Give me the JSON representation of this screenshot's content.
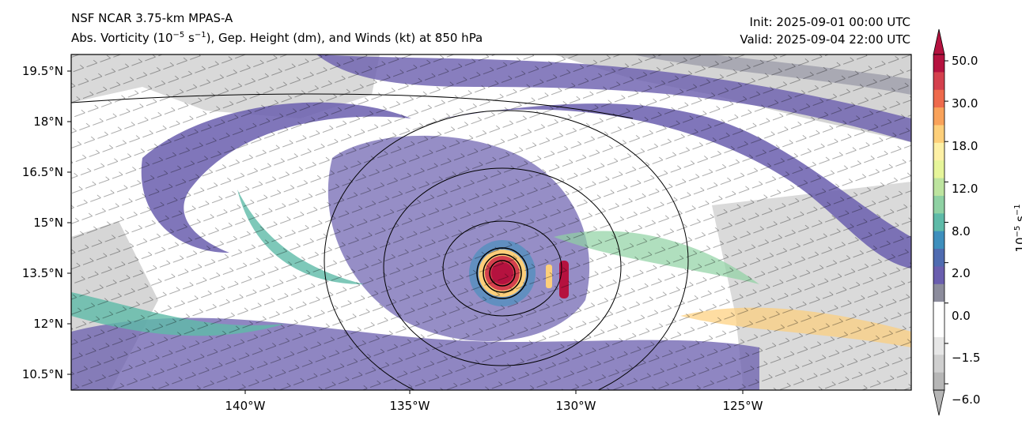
{
  "title": "NSF NCAR 3.75-km MPAS-A",
  "subtitle_prefix": "Abs. Vorticity (10",
  "subtitle_exp1": "−5",
  "subtitle_mid": " s",
  "subtitle_exp2": "−1",
  "subtitle_suffix": "), Gep. Height (dm), and Winds (kt) at 850 hPa",
  "init": "Init: 2025-09-01 00:00 UTC",
  "valid": "Valid: 2025-09-04 22:00 UTC",
  "lat_ticks": [
    "19.5°N",
    "18°N",
    "16.5°N",
    "15°N",
    "13.5°N",
    "12°N",
    "10.5°N"
  ],
  "lon_ticks": [
    "140°W",
    "135°W",
    "130°W",
    "125°W"
  ],
  "colorbar": {
    "label_base": "10",
    "label_exp1": "−5",
    "label_unit": " s",
    "label_exp2": "−1",
    "ticks": [
      "50.0",
      "30.0",
      "18.0",
      "12.0",
      "8.0",
      "2.0",
      "0.0",
      "−1.5",
      "−6.0"
    ],
    "colors": [
      "#b5123f",
      "#d4404d",
      "#ee6a4c",
      "#f9a25a",
      "#fdcf7a",
      "#fdf0a5",
      "#e6f59a",
      "#bde49f",
      "#8fd1a3",
      "#5ebaa8",
      "#3e8fbd",
      "#4f6bb0",
      "#6a5eae",
      "#8c8c9c",
      "#ffffff",
      "#ffffff",
      "#e6e6e6",
      "#cfcfcf",
      "#b6b6b6"
    ]
  },
  "storm": {
    "center_lon": "132°W",
    "center_lat": "13.5°N"
  }
}
